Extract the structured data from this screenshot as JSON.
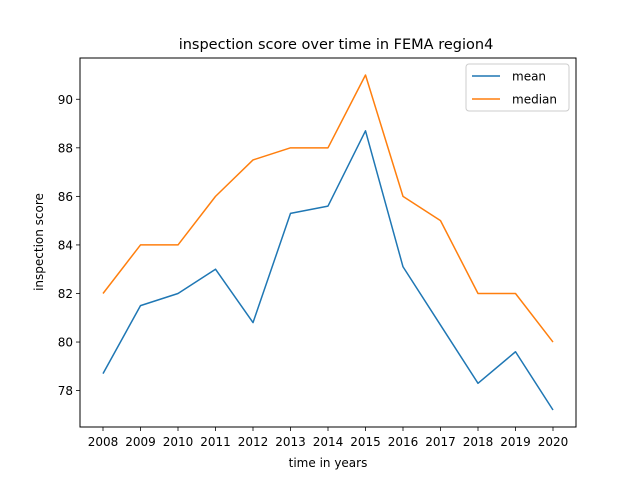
{
  "chart_data": {
    "type": "line",
    "title": "inspection score over time in FEMA region4",
    "xlabel": "time in years",
    "ylabel": "inspection score",
    "x": [
      2008,
      2009,
      2010,
      2011,
      2012,
      2013,
      2014,
      2015,
      2016,
      2017,
      2018,
      2019,
      2020
    ],
    "series": [
      {
        "name": "mean",
        "color": "#1f77b4",
        "values": [
          78.7,
          81.5,
          82.0,
          83.0,
          80.8,
          85.3,
          85.6,
          88.7,
          83.1,
          80.7,
          78.3,
          79.6,
          77.2
        ]
      },
      {
        "name": "median",
        "color": "#ff7f0e",
        "values": [
          82.0,
          84.0,
          84.0,
          86.0,
          87.5,
          88.0,
          88.0,
          91.0,
          86.0,
          85.0,
          82.0,
          82.0,
          80.0
        ]
      }
    ],
    "yticks": [
      78,
      80,
      82,
      84,
      86,
      88,
      90
    ],
    "ylim": [
      76.5,
      91.7
    ],
    "grid": false,
    "legend": "top-right"
  }
}
